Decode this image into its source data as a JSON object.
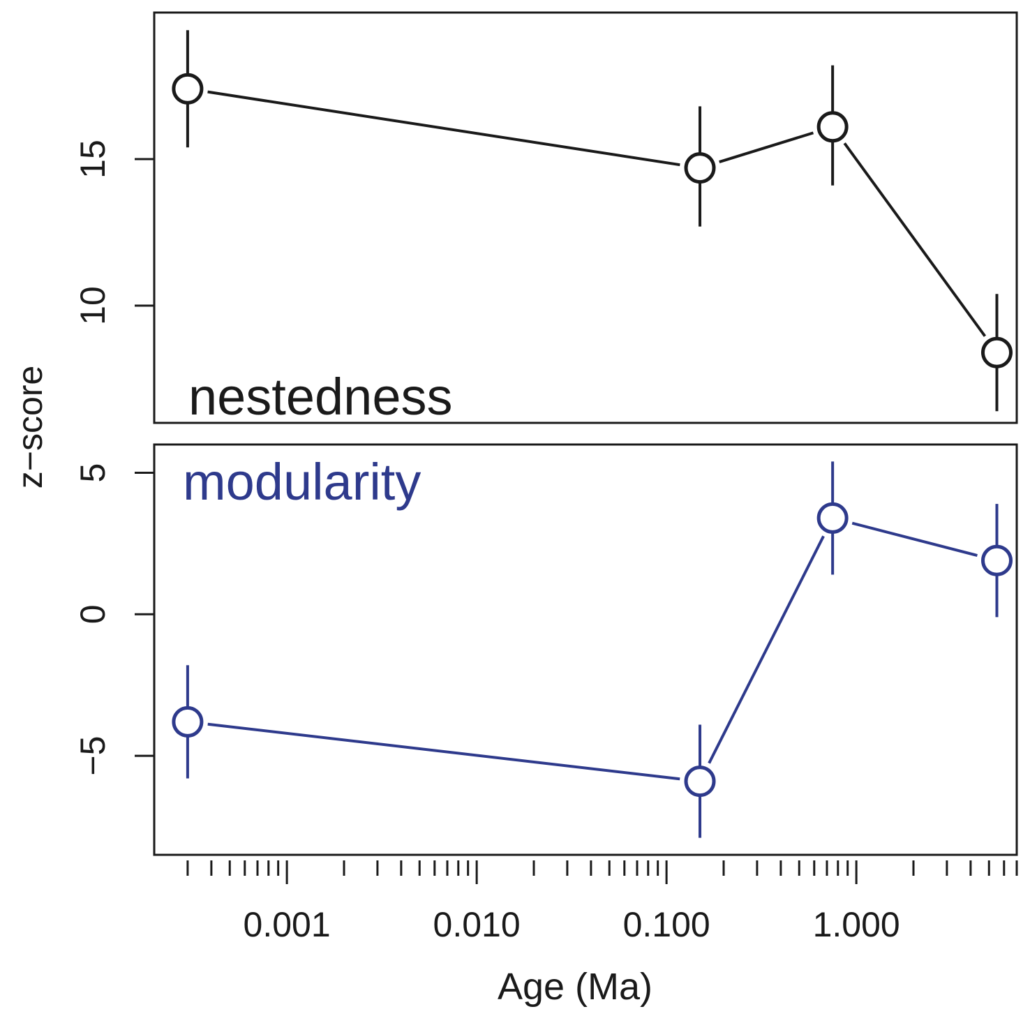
{
  "chart_data": [
    {
      "type": "line",
      "panel": "top",
      "annotation": "nestedness",
      "x": [
        0.0003,
        0.15,
        0.75,
        5.5
      ],
      "series": [
        {
          "values": [
            17.4,
            14.7,
            16.1,
            8.4
          ],
          "lower": [
            15.4,
            12.7,
            14.1,
            6.4
          ],
          "upper": [
            19.4,
            16.8,
            18.2,
            10.4
          ]
        }
      ],
      "ylim": [
        6.0,
        20.0
      ],
      "yticks": [
        10,
        15
      ],
      "ytick_labels": [
        "10",
        "15"
      ],
      "color": "#1a1a1a"
    },
    {
      "type": "line",
      "panel": "bottom",
      "annotation": "modularity",
      "x": [
        0.0003,
        0.15,
        0.75,
        5.5
      ],
      "series": [
        {
          "values": [
            -3.8,
            -5.9,
            3.4,
            1.9
          ],
          "lower": [
            -5.8,
            -7.9,
            1.4,
            -0.1
          ],
          "upper": [
            -1.8,
            -3.9,
            5.4,
            3.9
          ]
        }
      ],
      "ylim": [
        -8.5,
        6.0
      ],
      "yticks": [
        -5,
        0,
        5
      ],
      "ytick_labels": [
        "−5",
        "0",
        "5"
      ],
      "color": "#2e3a8c"
    }
  ],
  "shared": {
    "xlabel": "Age (Ma)",
    "ylabel": "z−score",
    "xscale": "log",
    "xlim": [
      0.0002,
      7.0
    ],
    "xticks": [
      0.001,
      0.01,
      0.1,
      1.0
    ],
    "xtick_labels": [
      "0.001",
      "0.010",
      "0.100",
      "1.000"
    ]
  }
}
